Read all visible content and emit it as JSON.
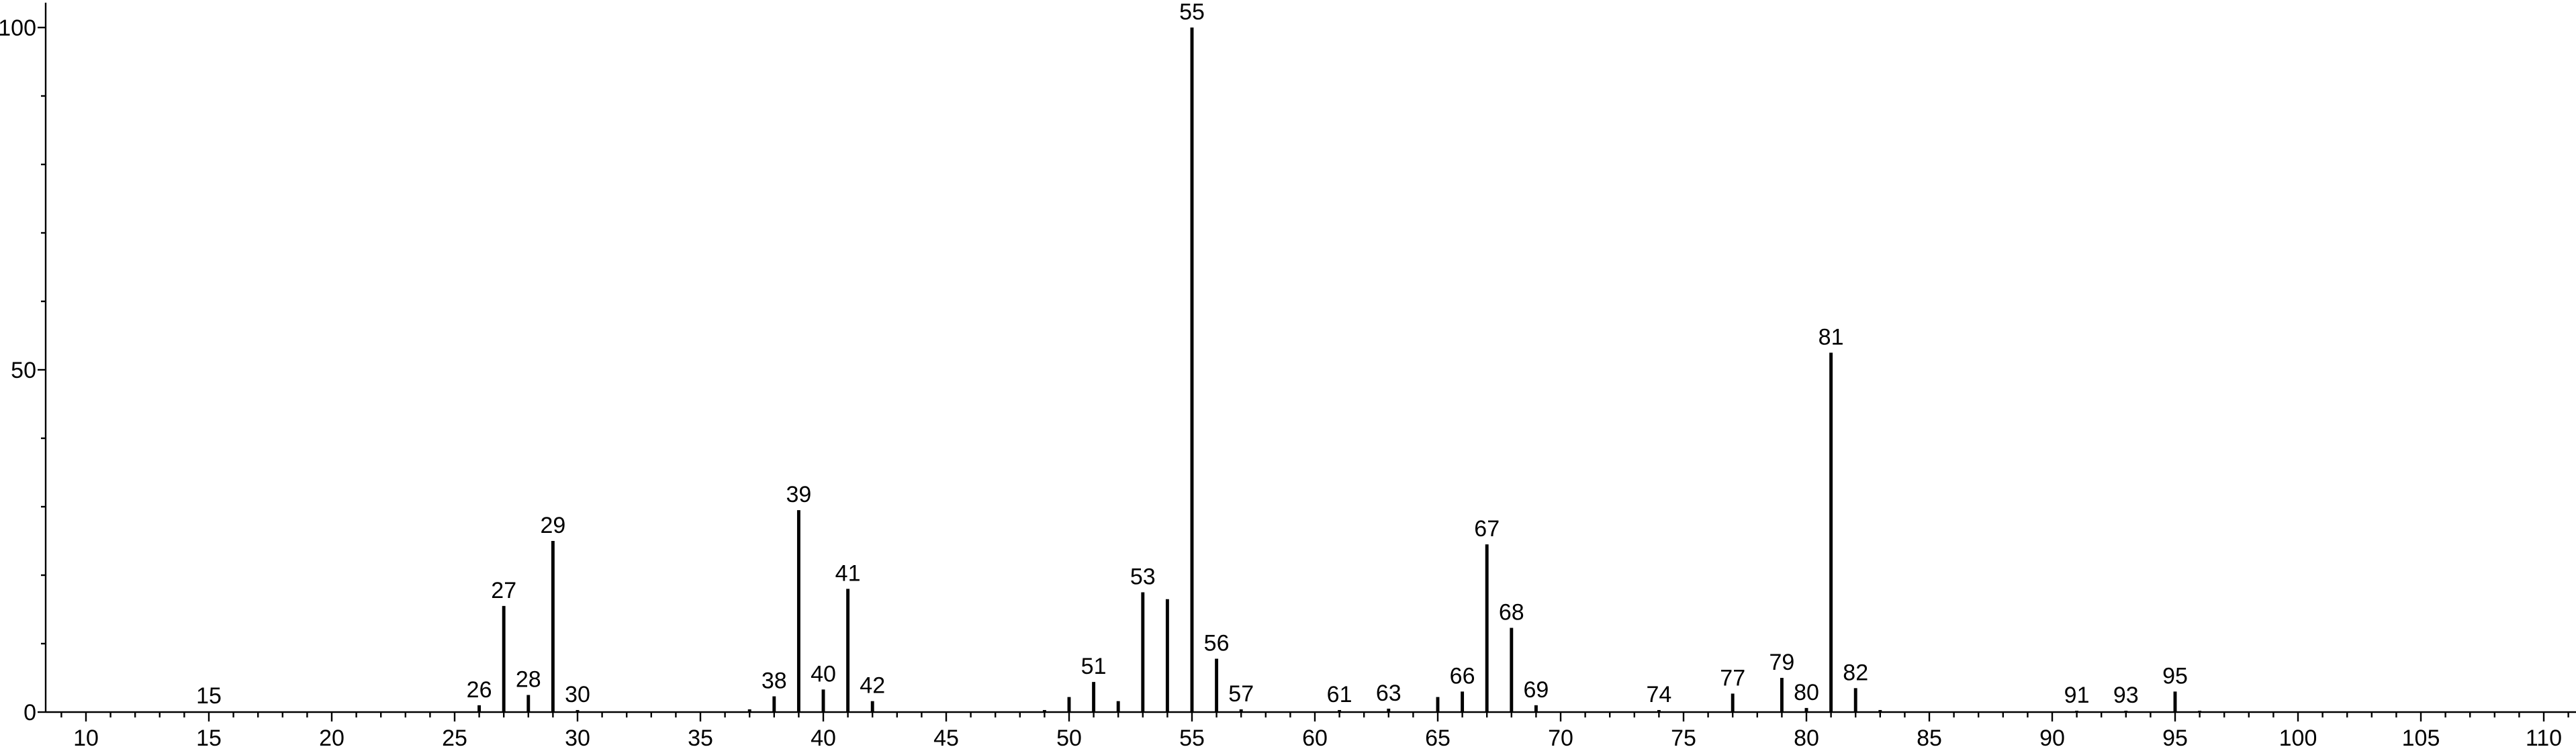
{
  "chart_data": {
    "type": "bar",
    "title": "",
    "xlabel": "",
    "ylabel": "",
    "xlim": [
      8.4,
      111.2
    ],
    "ylim": [
      0,
      103
    ],
    "x_ticks": [
      10,
      15,
      20,
      25,
      30,
      35,
      40,
      45,
      50,
      55,
      60,
      65,
      70,
      75,
      80,
      85,
      90,
      95,
      100,
      105,
      110
    ],
    "y_ticks": [
      0,
      50,
      100
    ],
    "series": [
      {
        "peaks": [
          {
            "x": 15,
            "y": 0.1,
            "label": "15"
          },
          {
            "x": 26,
            "y": 1.0,
            "label": "26"
          },
          {
            "x": 27,
            "y": 15.5,
            "label": "27"
          },
          {
            "x": 28,
            "y": 2.5,
            "label": "28"
          },
          {
            "x": 29,
            "y": 25.0,
            "label": "29"
          },
          {
            "x": 30,
            "y": 0.3,
            "label": "30"
          },
          {
            "x": 37,
            "y": 0.4,
            "label": ""
          },
          {
            "x": 38,
            "y": 2.3,
            "label": "38"
          },
          {
            "x": 39,
            "y": 29.5,
            "label": "39"
          },
          {
            "x": 40,
            "y": 3.3,
            "label": "40"
          },
          {
            "x": 41,
            "y": 18.0,
            "label": "41"
          },
          {
            "x": 42,
            "y": 1.6,
            "label": "42"
          },
          {
            "x": 49,
            "y": 0.3,
            "label": ""
          },
          {
            "x": 50,
            "y": 2.2,
            "label": ""
          },
          {
            "x": 51,
            "y": 4.4,
            "label": "51"
          },
          {
            "x": 52,
            "y": 1.6,
            "label": ""
          },
          {
            "x": 53,
            "y": 17.5,
            "label": "53"
          },
          {
            "x": 54,
            "y": 16.5,
            "label": ""
          },
          {
            "x": 55,
            "y": 100.0,
            "label": "55"
          },
          {
            "x": 56,
            "y": 7.8,
            "label": "56"
          },
          {
            "x": 57,
            "y": 0.4,
            "label": "57"
          },
          {
            "x": 61,
            "y": 0.3,
            "label": "61"
          },
          {
            "x": 63,
            "y": 0.5,
            "label": "63"
          },
          {
            "x": 65,
            "y": 2.2,
            "label": ""
          },
          {
            "x": 66,
            "y": 3.0,
            "label": "66"
          },
          {
            "x": 67,
            "y": 24.5,
            "label": "67"
          },
          {
            "x": 68,
            "y": 12.3,
            "label": "68"
          },
          {
            "x": 69,
            "y": 1.0,
            "label": "69"
          },
          {
            "x": 74,
            "y": 0.3,
            "label": "74"
          },
          {
            "x": 77,
            "y": 2.7,
            "label": "77"
          },
          {
            "x": 79,
            "y": 5.0,
            "label": "79"
          },
          {
            "x": 80,
            "y": 0.6,
            "label": "80"
          },
          {
            "x": 81,
            "y": 52.5,
            "label": "81"
          },
          {
            "x": 82,
            "y": 3.5,
            "label": "82"
          },
          {
            "x": 83,
            "y": 0.3,
            "label": ""
          },
          {
            "x": 91,
            "y": 0.2,
            "label": "91"
          },
          {
            "x": 93,
            "y": 0.2,
            "label": "93"
          },
          {
            "x": 95,
            "y": 3.0,
            "label": "95"
          },
          {
            "x": 96,
            "y": 0.2,
            "label": ""
          }
        ]
      }
    ],
    "grid": false,
    "legend": "none"
  }
}
